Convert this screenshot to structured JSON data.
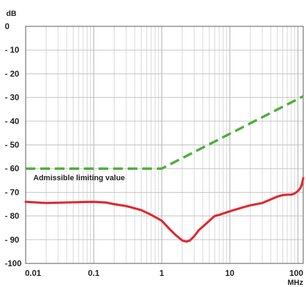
{
  "chart_data": {
    "type": "line",
    "ylabel": "dB",
    "xlabel": "MHz",
    "x_scale": "log",
    "xlim": [
      0.01,
      120
    ],
    "ylim": [
      -100,
      0
    ],
    "grid": true,
    "x_ticks": [
      {
        "value": 0.01,
        "label": "0.01"
      },
      {
        "value": 0.1,
        "label": "0.1"
      },
      {
        "value": 1,
        "label": "1"
      },
      {
        "value": 10,
        "label": "10"
      },
      {
        "value": 100,
        "label": "100"
      }
    ],
    "y_ticks": [
      {
        "value": 0,
        "label": "0"
      },
      {
        "value": -10,
        "label": "- 10"
      },
      {
        "value": -20,
        "label": "- 20"
      },
      {
        "value": -30,
        "label": "- 30"
      },
      {
        "value": -40,
        "label": "- 40"
      },
      {
        "value": -50,
        "label": "- 50"
      },
      {
        "value": -60,
        "label": "- 60"
      },
      {
        "value": -70,
        "label": "- 70"
      },
      {
        "value": -80,
        "label": "- 80"
      },
      {
        "value": -90,
        "label": "- 90"
      },
      {
        "value": -100,
        "label": "-100"
      }
    ],
    "annotation": "Admissible limiting value",
    "series": [
      {
        "name": "Admissible limiting value",
        "color": "#4caf3a",
        "style": "dashed",
        "x": [
          0.01,
          1,
          120
        ],
        "y": [
          -60,
          -60,
          -29.5
        ]
      },
      {
        "color": "#e0282e",
        "style": "solid",
        "x": [
          0.01,
          0.02,
          0.05,
          0.1,
          0.15,
          0.2,
          0.3,
          0.5,
          0.7,
          1,
          1.3,
          1.6,
          2,
          2.3,
          2.6,
          3,
          3.5,
          4,
          5,
          6,
          7,
          10,
          15,
          20,
          30,
          40,
          50,
          60,
          70,
          80,
          90,
          100,
          110,
          115,
          120
        ],
        "y": [
          -74,
          -74.5,
          -74.2,
          -74,
          -74.3,
          -75,
          -75.8,
          -77.5,
          -79.5,
          -82,
          -85.5,
          -88,
          -90.3,
          -90.8,
          -90.3,
          -88.5,
          -86,
          -84.5,
          -82,
          -80,
          -79.5,
          -78,
          -76.5,
          -75.5,
          -74.5,
          -73,
          -71.8,
          -71.2,
          -71,
          -71,
          -70.5,
          -69.5,
          -68,
          -66.5,
          -64
        ]
      }
    ]
  }
}
